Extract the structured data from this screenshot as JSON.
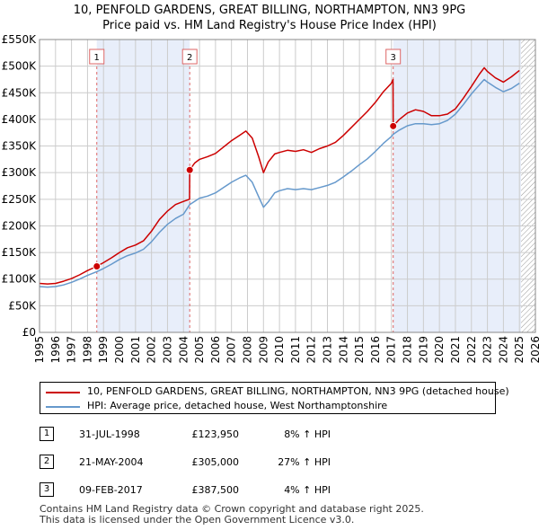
{
  "title_line1": "10, PENFOLD GARDENS, GREAT BILLING, NORTHAMPTON, NN3 9PG",
  "title_line2": "Price paid vs. HM Land Registry's House Price Index (HPI)",
  "colors": {
    "property": "#cc0000",
    "hpi": "#6699cc",
    "shade": "#e8eefa",
    "grid": "#cccccc",
    "vline": "#dd6666",
    "hatch": "#999999"
  },
  "chart_data": {
    "type": "line",
    "title": "Price paid vs. HM Land Registry's House Price Index (HPI)",
    "xlabel": "",
    "ylabel": "",
    "xlim": [
      1995,
      2026
    ],
    "ylim": [
      0,
      550000
    ],
    "yticks": [
      0,
      50000,
      100000,
      150000,
      200000,
      250000,
      300000,
      350000,
      400000,
      450000,
      500000,
      550000
    ],
    "ytick_labels": [
      "£0",
      "£50K",
      "£100K",
      "£150K",
      "£200K",
      "£250K",
      "£300K",
      "£350K",
      "£400K",
      "£450K",
      "£500K",
      "£550K"
    ],
    "xticks": [
      1995,
      1996,
      1997,
      1998,
      1999,
      2000,
      2001,
      2002,
      2003,
      2004,
      2005,
      2006,
      2007,
      2008,
      2009,
      2010,
      2011,
      2012,
      2013,
      2014,
      2015,
      2016,
      2017,
      2018,
      2019,
      2020,
      2021,
      2022,
      2023,
      2024,
      2025,
      2026
    ],
    "xtick_labels": [
      "1995",
      "1996",
      "1997",
      "1998",
      "1999",
      "2000",
      "2001",
      "2002",
      "2003",
      "2004",
      "2005",
      "2006",
      "2007",
      "2008",
      "2009",
      "2010",
      "2011",
      "2012",
      "2013",
      "2014",
      "2015",
      "2016",
      "2017",
      "2018",
      "2019",
      "2020",
      "2021",
      "2022",
      "2023",
      "2024",
      "2025",
      "2026"
    ],
    "shaded_periods": [
      [
        1998.58,
        2004.39
      ],
      [
        2017.11,
        2025.1
      ]
    ],
    "future_hatch_from": 2025.1,
    "grid": true,
    "series": [
      {
        "name": "10, PENFOLD GARDENS, GREAT BILLING, NORTHAMPTON, NN3 9PG (detached house)",
        "color": "#cc0000",
        "x": [
          1995.0,
          1995.5,
          1996.0,
          1996.5,
          1997.0,
          1997.5,
          1998.0,
          1998.58,
          1999.0,
          1999.5,
          2000.0,
          2000.5,
          2001.0,
          2001.5,
          2002.0,
          2002.5,
          2003.0,
          2003.5,
          2004.0,
          2004.38,
          2004.39,
          2004.7,
          2005.0,
          2005.5,
          2006.0,
          2006.5,
          2007.0,
          2007.5,
          2007.9,
          2008.3,
          2008.7,
          2009.0,
          2009.3,
          2009.7,
          2010.0,
          2010.5,
          2011.0,
          2011.5,
          2012.0,
          2012.5,
          2013.0,
          2013.5,
          2014.0,
          2014.5,
          2015.0,
          2015.5,
          2016.0,
          2016.5,
          2017.0,
          2017.1,
          2017.11,
          2017.5,
          2018.0,
          2018.5,
          2019.0,
          2019.5,
          2020.0,
          2020.5,
          2021.0,
          2021.5,
          2022.0,
          2022.5,
          2022.8,
          2023.0,
          2023.5,
          2024.0,
          2024.5,
          2025.0
        ],
        "y": [
          92000,
          91000,
          92000,
          96000,
          101000,
          108000,
          116000,
          123950,
          131000,
          140000,
          150000,
          159000,
          164000,
          172000,
          190000,
          212000,
          228000,
          240000,
          246000,
          250000,
          305000,
          318000,
          325000,
          330000,
          336000,
          348000,
          360000,
          370000,
          378000,
          365000,
          330000,
          300000,
          320000,
          335000,
          338000,
          342000,
          340000,
          343000,
          338000,
          345000,
          350000,
          357000,
          370000,
          385000,
          400000,
          415000,
          432000,
          452000,
          468000,
          475000,
          387500,
          400000,
          412000,
          418000,
          415000,
          407000,
          407000,
          410000,
          420000,
          440000,
          462000,
          485000,
          497000,
          490000,
          478000,
          470000,
          480000,
          492000
        ]
      },
      {
        "name": "HPI: Average price, detached house, West Northamptonshire",
        "color": "#6699cc",
        "x": [
          1995.0,
          1995.5,
          1996.0,
          1996.5,
          1997.0,
          1997.5,
          1998.0,
          1998.58,
          1999.0,
          1999.5,
          2000.0,
          2000.5,
          2001.0,
          2001.5,
          2002.0,
          2002.5,
          2003.0,
          2003.5,
          2004.0,
          2004.39,
          2005.0,
          2005.5,
          2006.0,
          2006.5,
          2007.0,
          2007.5,
          2007.9,
          2008.3,
          2008.7,
          2009.0,
          2009.3,
          2009.7,
          2010.0,
          2010.5,
          2011.0,
          2011.5,
          2012.0,
          2012.5,
          2013.0,
          2013.5,
          2014.0,
          2014.5,
          2015.0,
          2015.5,
          2016.0,
          2016.5,
          2017.0,
          2017.11,
          2017.5,
          2018.0,
          2018.5,
          2019.0,
          2019.5,
          2020.0,
          2020.5,
          2021.0,
          2021.5,
          2022.0,
          2022.5,
          2022.8,
          2023.0,
          2023.5,
          2024.0,
          2024.5,
          2025.0
        ],
        "y": [
          86000,
          85000,
          86000,
          89000,
          94000,
          100000,
          107000,
          114000,
          120000,
          128000,
          137000,
          144000,
          149000,
          156000,
          170000,
          188000,
          203000,
          214000,
          222000,
          240000,
          252000,
          256000,
          262000,
          272000,
          282000,
          290000,
          295000,
          282000,
          255000,
          235000,
          245000,
          262000,
          266000,
          270000,
          268000,
          270000,
          268000,
          272000,
          276000,
          282000,
          292000,
          303000,
          315000,
          326000,
          340000,
          355000,
          368000,
          372000,
          380000,
          388000,
          392000,
          392000,
          390000,
          392000,
          398000,
          410000,
          428000,
          448000,
          465000,
          475000,
          470000,
          460000,
          452000,
          458000,
          468000
        ]
      }
    ],
    "markers": [
      {
        "label": "1",
        "x": 1998.58,
        "y": 123950
      },
      {
        "label": "2",
        "x": 2004.39,
        "y": 305000
      },
      {
        "label": "3",
        "x": 2017.11,
        "y": 387500
      }
    ]
  },
  "legend": {
    "property_label": "10, PENFOLD GARDENS, GREAT BILLING, NORTHAMPTON, NN3 9PG (detached house)",
    "hpi_label": "HPI: Average price, detached house, West Northamptonshire"
  },
  "transactions": [
    {
      "num": "1",
      "date": "31-JUL-1998",
      "price": "£123,950",
      "hpi": "8% ↑ HPI"
    },
    {
      "num": "2",
      "date": "21-MAY-2004",
      "price": "£305,000",
      "hpi": "27% ↑ HPI"
    },
    {
      "num": "3",
      "date": "09-FEB-2017",
      "price": "£387,500",
      "hpi": "4% ↑ HPI"
    }
  ],
  "footer_line1": "Contains HM Land Registry data © Crown copyright and database right 2025.",
  "footer_line2": "This data is licensed under the Open Government Licence v3.0."
}
